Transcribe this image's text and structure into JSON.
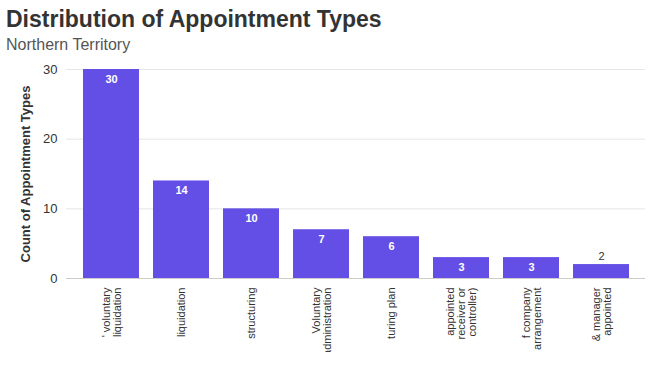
{
  "chart_data": {
    "type": "bar",
    "title": "Distribution of Appointment Types",
    "subtitle": "Northern Territory",
    "y_label": "Count of Appointment Types",
    "categories": [
      "' voluntary liquidation",
      "liquidation",
      "structuring",
      "Voluntary administration",
      "turing plan",
      "appointed receiver or controller)",
      "f company arrangement",
      "& manager appointed"
    ],
    "values": [
      30,
      14,
      10,
      7,
      6,
      3,
      3,
      2
    ],
    "color": "#634fe6",
    "ylim": [
      0,
      30
    ],
    "yticks": [
      0,
      10,
      20,
      30
    ],
    "grid": true,
    "data_labels": true
  }
}
